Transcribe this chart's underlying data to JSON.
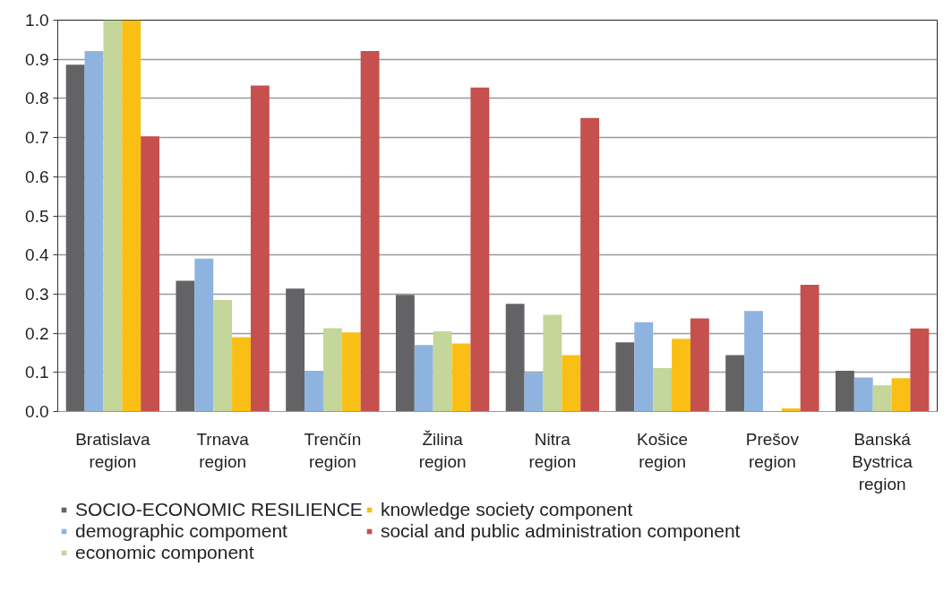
{
  "chart_data": {
    "type": "bar",
    "categories": [
      "Bratislava region",
      "Trnava region",
      "Trenčín region",
      "Žilina region",
      "Nitra region",
      "Košice region",
      "Prešov region",
      "Banská Bystrica region"
    ],
    "series": [
      {
        "name": "SOCIO-ECONOMIC RESILIENCE",
        "color": "#636366",
        "values": [
          0.886,
          0.334,
          0.314,
          0.298,
          0.275,
          0.177,
          0.144,
          0.104
        ]
      },
      {
        "name": "demographic compoment",
        "color": "#8eb3de",
        "values": [
          0.921,
          0.391,
          0.104,
          0.17,
          0.099,
          0.228,
          0.257,
          0.087
        ]
      },
      {
        "name": "economic component",
        "color": "#c4d699",
        "values": [
          1.0,
          0.285,
          0.213,
          0.205,
          0.247,
          0.111,
          0.0,
          0.067
        ]
      },
      {
        "name": "knowledge society component",
        "color": "#fabf14",
        "values": [
          1.0,
          0.19,
          0.202,
          0.174,
          0.144,
          0.186,
          0.008,
          0.085
        ]
      },
      {
        "name": "social and public administration component",
        "color": "#c5504e",
        "values": [
          0.703,
          0.833,
          0.921,
          0.828,
          0.75,
          0.238,
          0.324,
          0.212
        ]
      }
    ],
    "ylim": [
      0,
      1.0
    ],
    "yticks": [
      {
        "value": 0,
        "label": "0.0"
      },
      0.1,
      0.2,
      0.3,
      0.4,
      0.5,
      0.6,
      0.7,
      0.8,
      0.9,
      {
        "value": 1,
        "label": "1.0"
      }
    ],
    "grid": "y",
    "legend": "bottom"
  }
}
